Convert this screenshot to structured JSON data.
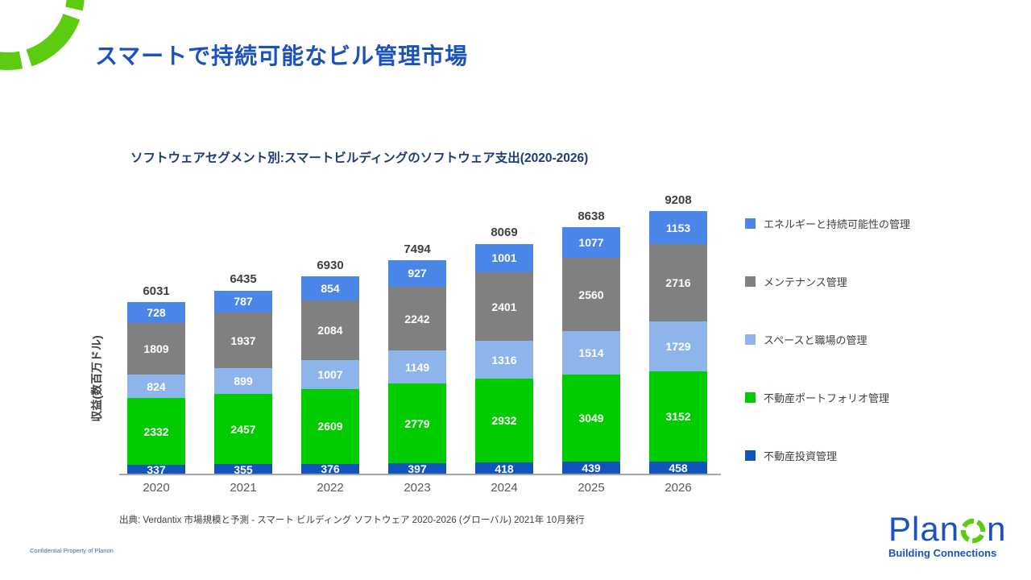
{
  "slide": {
    "title": "スマートで持続可能なビル管理市場",
    "source": "出典: Verdantix 市場規模と予測 - スマート ビルディング ソフトウェア 2020-2026 (グローバル) 2021年 10月発行",
    "confidential": "Confidential  Property of Planon"
  },
  "chart_data": {
    "type": "bar",
    "stacked": true,
    "title": "ソフトウェアセグメント別:スマートビルディングのソフトウェア支出(2020-2026)",
    "ylabel": "収益(数百万ドル)",
    "categories": [
      "2020",
      "2021",
      "2022",
      "2023",
      "2024",
      "2025",
      "2026"
    ],
    "series": [
      {
        "name": "不動産投資管理",
        "color": "#1155BB",
        "values": [
          337,
          355,
          376,
          397,
          418,
          439,
          458
        ]
      },
      {
        "name": "不動産ポートフォリオ管理",
        "color": "#00CC00",
        "values": [
          2332,
          2457,
          2609,
          2779,
          2932,
          3049,
          3152
        ]
      },
      {
        "name": "スペースと職場の管理",
        "color": "#8EB4EC",
        "values": [
          824,
          899,
          1007,
          1149,
          1316,
          1514,
          1729
        ]
      },
      {
        "name": "メンテナンス管理",
        "color": "#808080",
        "values": [
          1809,
          1937,
          2084,
          2242,
          2401,
          2560,
          2716
        ]
      },
      {
        "name": "エネルギーと持続可能性の管理",
        "color": "#4A86E8",
        "values": [
          728,
          787,
          854,
          927,
          1001,
          1077,
          1153
        ]
      }
    ],
    "totals": [
      6031,
      6435,
      6930,
      7494,
      8069,
      8638,
      9208
    ],
    "legend_position": "right",
    "legend_order": [
      "エネルギーと持続可能性の管理",
      "メンテナンス管理",
      "スペースと職場の管理",
      "不動産ポートフォリオ管理",
      "不動産投資管理"
    ],
    "grid": false,
    "value_labels": "inside-white",
    "axis_line_color": "#A6A6A6"
  },
  "logo": {
    "word_start": "Plan",
    "word_end": "n",
    "o_icon": "dashed-circle-icon",
    "tagline": "Building Connections"
  },
  "colors": {
    "title_blue": "#1A52BE",
    "chart_title_navy": "#1F3C78",
    "brand_green": "#5BCC0F",
    "year_label_gray": "#595959",
    "total_label_gray": "#3F3F3F"
  }
}
